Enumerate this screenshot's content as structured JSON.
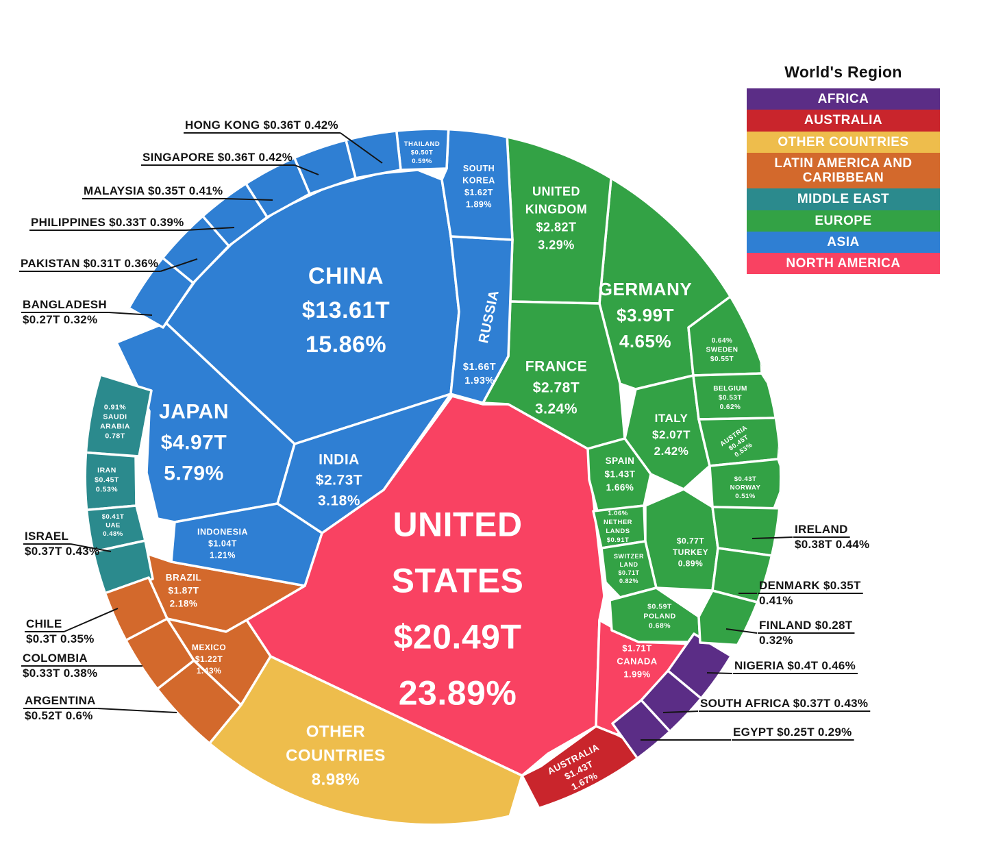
{
  "legend": {
    "title": "World's Region",
    "items": [
      {
        "label": "AFRICA",
        "color": "#5b2d86"
      },
      {
        "label": "AUSTRALIA",
        "color": "#c9252c"
      },
      {
        "label": "OTHER COUNTRIES",
        "color": "#eebd4c"
      },
      {
        "label": "LATIN AMERICA AND CARIBBEAN",
        "color": "#d3692c"
      },
      {
        "label": "MIDDLE EAST",
        "color": "#2b8a8d"
      },
      {
        "label": "EUROPE",
        "color": "#33a245"
      },
      {
        "label": "ASIA",
        "color": "#2f7fd3"
      },
      {
        "label": "NORTH AMERICA",
        "color": "#f94262"
      }
    ]
  },
  "chart_data": {
    "type": "voronoi-treemap",
    "description": "World GDP by country, share of world total, grouped by region",
    "region_colors": {
      "AFRICA": "#5b2d86",
      "AUSTRALIA": "#c9252c",
      "OTHER COUNTRIES": "#eebd4c",
      "LATIN AMERICA AND CARIBBEAN": "#d3692c",
      "MIDDLE EAST": "#2b8a8d",
      "EUROPE": "#33a245",
      "ASIA": "#2f7fd3",
      "NORTH AMERICA": "#f94262"
    },
    "countries": [
      {
        "id": "us",
        "name": "UNITED STATES",
        "name_lines": [
          "UNITED",
          "STATES"
        ],
        "value": "$20.49T",
        "pct": "23.89%",
        "region": "NORTH AMERICA"
      },
      {
        "id": "china",
        "name": "CHINA",
        "value": "$13.61T",
        "pct": "15.86%",
        "region": "ASIA"
      },
      {
        "id": "japan",
        "name": "JAPAN",
        "value": "$4.97T",
        "pct": "5.79%",
        "region": "ASIA"
      },
      {
        "id": "germany",
        "name": "GERMANY",
        "value": "$3.99T",
        "pct": "4.65%",
        "region": "EUROPE"
      },
      {
        "id": "uk",
        "name": "UNITED KINGDOM",
        "name_lines": [
          "UNITED",
          "KINGDOM"
        ],
        "value": "$2.82T",
        "pct": "3.29%",
        "region": "EUROPE"
      },
      {
        "id": "france",
        "name": "FRANCE",
        "value": "$2.78T",
        "pct": "3.24%",
        "region": "EUROPE"
      },
      {
        "id": "india",
        "name": "INDIA",
        "value": "$2.73T",
        "pct": "3.18%",
        "region": "ASIA"
      },
      {
        "id": "italy",
        "name": "ITALY",
        "value": "$2.07T",
        "pct": "2.42%",
        "region": "EUROPE"
      },
      {
        "id": "brazil",
        "name": "BRAZIL",
        "value": "$1.87T",
        "pct": "2.18%",
        "region": "LATIN AMERICA AND CARIBBEAN"
      },
      {
        "id": "canada",
        "name": "CANADA",
        "value": "$1.71T",
        "pct": "1.99%",
        "region": "NORTH AMERICA"
      },
      {
        "id": "russia",
        "name": "RUSSIA",
        "value": "$1.66T",
        "pct": "1.93%",
        "region": "ASIA"
      },
      {
        "id": "south-korea",
        "name": "SOUTH KOREA",
        "name_lines": [
          "SOUTH",
          "KOREA"
        ],
        "value": "$1.62T",
        "pct": "1.89%",
        "region": "ASIA"
      },
      {
        "id": "australia",
        "name": "AUSTRALIA",
        "value": "$1.43T",
        "pct": "1.67%",
        "region": "AUSTRALIA"
      },
      {
        "id": "spain",
        "name": "SPAIN",
        "value": "$1.43T",
        "pct": "1.66%",
        "region": "EUROPE"
      },
      {
        "id": "mexico",
        "name": "MEXICO",
        "value": "$1.22T",
        "pct": "1.43%",
        "region": "LATIN AMERICA AND CARIBBEAN"
      },
      {
        "id": "indonesia",
        "name": "INDONESIA",
        "value": "$1.04T",
        "pct": "1.21%",
        "region": "ASIA"
      },
      {
        "id": "netherlands",
        "name": "NETHERLANDS",
        "name_lines": [
          "NETHER",
          "LANDS"
        ],
        "value": "$0.91T",
        "pct": "1.06%",
        "region": "EUROPE"
      },
      {
        "id": "saudi-arabia",
        "name": "SAUDI ARABIA",
        "name_lines": [
          "SAUDI",
          "ARABIA"
        ],
        "value": "0.78T",
        "pct": "0.91%",
        "region": "MIDDLE EAST"
      },
      {
        "id": "turkey",
        "name": "TURKEY",
        "value": "$0.77T",
        "pct": "0.89%",
        "region": "EUROPE"
      },
      {
        "id": "switzerland",
        "name": "SWITZERLAND",
        "name_lines": [
          "SWITZER",
          "LAND"
        ],
        "value": "$0.71T",
        "pct": "0.82%",
        "region": "EUROPE"
      },
      {
        "id": "poland",
        "name": "POLAND",
        "value": "$0.59T",
        "pct": "0.68%",
        "region": "EUROPE"
      },
      {
        "id": "sweden",
        "name": "SWEDEN",
        "value": "$0.55T",
        "pct": "0.64%",
        "region": "EUROPE"
      },
      {
        "id": "belgium",
        "name": "BELGIUM",
        "value": "$0.53T",
        "pct": "0.62%",
        "region": "EUROPE"
      },
      {
        "id": "argentina",
        "name": "ARGENTINA",
        "value": "$0.52T",
        "pct": "0.6%",
        "region": "LATIN AMERICA AND CARIBBEAN"
      },
      {
        "id": "thailand",
        "name": "THAILAND",
        "value": "$0.50T",
        "pct": "0.59%",
        "region": "ASIA"
      },
      {
        "id": "austria",
        "name": "AUSTRIA",
        "value": "$0.45T",
        "pct": "0.53%",
        "region": "EUROPE"
      },
      {
        "id": "iran",
        "name": "IRAN",
        "value": "$0.45T",
        "pct": "0.53%",
        "region": "MIDDLE EAST"
      },
      {
        "id": "norway",
        "name": "NORWAY",
        "value": "$0.43T",
        "pct": "0.51%",
        "region": "EUROPE"
      },
      {
        "id": "uae",
        "name": "UAE",
        "value": "$0.41T",
        "pct": "0.48%",
        "region": "MIDDLE EAST"
      },
      {
        "id": "nigeria",
        "name": "NIGERIA",
        "value": "$0.4T",
        "pct": "0.46%",
        "region": "AFRICA"
      },
      {
        "id": "ireland",
        "name": "IRELAND",
        "value": "$0.38T",
        "pct": "0.44%",
        "region": "EUROPE"
      },
      {
        "id": "israel",
        "name": "ISRAEL",
        "value": "$0.37T",
        "pct": "0.43%",
        "region": "MIDDLE EAST"
      },
      {
        "id": "south-africa",
        "name": "SOUTH AFRICA",
        "value": "$0.37T",
        "pct": "0.43%",
        "region": "AFRICA"
      },
      {
        "id": "hong-kong",
        "name": "HONG KONG",
        "value": "$0.36T",
        "pct": "0.42%",
        "region": "ASIA"
      },
      {
        "id": "singapore",
        "name": "SINGAPORE",
        "value": "$0.36T",
        "pct": "0.42%",
        "region": "ASIA"
      },
      {
        "id": "denmark",
        "name": "DENMARK",
        "value": "$0.35T",
        "pct": "0.41%",
        "region": "EUROPE"
      },
      {
        "id": "malaysia",
        "name": "MALAYSIA",
        "value": "$0.35T",
        "pct": "0.41%",
        "region": "ASIA"
      },
      {
        "id": "philippines",
        "name": "PHILIPPINES",
        "value": "$0.33T",
        "pct": "0.39%",
        "region": "ASIA"
      },
      {
        "id": "colombia",
        "name": "COLOMBIA",
        "value": "$0.33T",
        "pct": "0.38%",
        "region": "LATIN AMERICA AND CARIBBEAN"
      },
      {
        "id": "pakistan",
        "name": "PAKISTAN",
        "value": "$0.31T",
        "pct": "0.36%",
        "region": "ASIA"
      },
      {
        "id": "chile",
        "name": "CHILE",
        "value": "$0.3T",
        "pct": "0.35%",
        "region": "LATIN AMERICA AND CARIBBEAN"
      },
      {
        "id": "finland",
        "name": "FINLAND",
        "value": "$0.28T",
        "pct": "0.32%",
        "region": "EUROPE"
      },
      {
        "id": "bangladesh",
        "name": "BANGLADESH",
        "value": "$0.27T",
        "pct": "0.32%",
        "region": "ASIA"
      },
      {
        "id": "egypt",
        "name": "EGYPT",
        "value": "$0.25T",
        "pct": "0.29%",
        "region": "AFRICA"
      },
      {
        "id": "other",
        "name": "OTHER COUNTRIES",
        "name_lines": [
          "OTHER",
          "COUNTRIES"
        ],
        "pct": "8.98%",
        "region": "OTHER COUNTRIES"
      }
    ]
  }
}
